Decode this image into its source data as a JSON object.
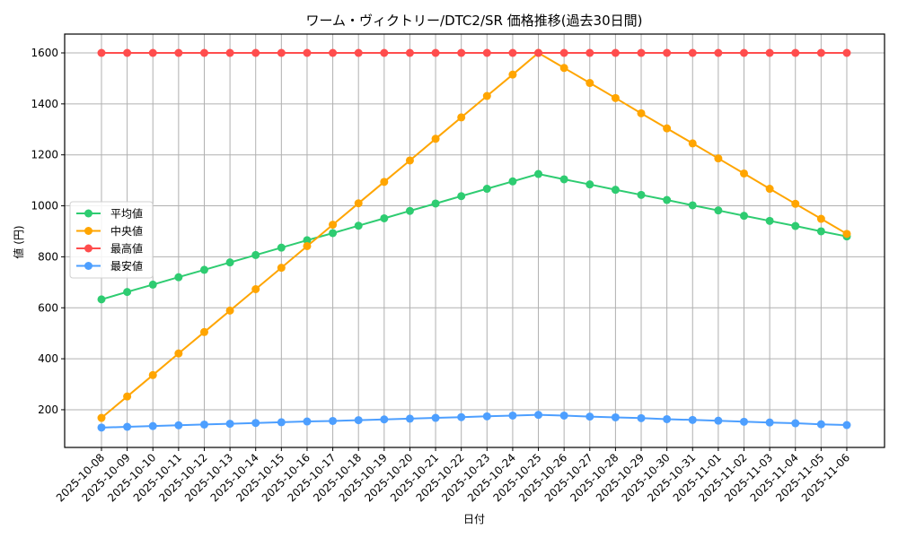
{
  "chart_data": {
    "type": "line",
    "title": "ワーム・ヴィクトリー/DTC2/SR 価格推移(過去30日間)",
    "xlabel": "日付",
    "ylabel": "値 (円)",
    "ylim": [
      55,
      1665
    ],
    "yticks": [
      200,
      400,
      600,
      800,
      1000,
      1200,
      1400,
      1600
    ],
    "grid": true,
    "legend_position": "center left",
    "x": [
      "2025-10-08",
      "2025-10-09",
      "2025-10-10",
      "2025-10-11",
      "2025-10-12",
      "2025-10-13",
      "2025-10-14",
      "2025-10-15",
      "2025-10-16",
      "2025-10-17",
      "2025-10-18",
      "2025-10-19",
      "2025-10-20",
      "2025-10-21",
      "2025-10-22",
      "2025-10-23",
      "2025-10-24",
      "2025-10-25",
      "2025-10-26",
      "2025-10-27",
      "2025-10-28",
      "2025-10-29",
      "2025-10-30",
      "2025-10-31",
      "2025-11-01",
      "2025-11-02",
      "2025-11-03",
      "2025-11-04",
      "2025-11-05",
      "2025-11-06"
    ],
    "series": [
      {
        "name": "平均値",
        "color": "#2ecc71",
        "values": [
          633,
          662,
          691,
          720,
          749,
          778,
          807,
          836,
          865,
          893,
          922,
          951,
          980,
          1009,
          1038,
          1067,
          1096,
          1125,
          1104,
          1084,
          1063,
          1043,
          1023,
          1002,
          982,
          961,
          941,
          921,
          900,
          880
        ]
      },
      {
        "name": "中央値",
        "color": "#ffa500",
        "values": [
          168,
          252,
          336,
          421,
          505,
          589,
          673,
          757,
          842,
          926,
          1010,
          1094,
          1178,
          1263,
          1347,
          1431,
          1515,
          1600,
          1541,
          1482,
          1423,
          1363,
          1304,
          1245,
          1186,
          1127,
          1067,
          1008,
          949,
          890
        ]
      },
      {
        "name": "最高値",
        "color": "#ff4d4d",
        "values": [
          1600,
          1600,
          1600,
          1600,
          1600,
          1600,
          1600,
          1600,
          1600,
          1600,
          1600,
          1600,
          1600,
          1600,
          1600,
          1600,
          1600,
          1600,
          1600,
          1600,
          1600,
          1600,
          1600,
          1600,
          1600,
          1600,
          1600,
          1600,
          1600,
          1600
        ]
      },
      {
        "name": "最安値",
        "color": "#4d9fff",
        "values": [
          130,
          133,
          136,
          139,
          142,
          145,
          148,
          151,
          154,
          156,
          159,
          162,
          165,
          168,
          171,
          174,
          177,
          180,
          177,
          173,
          170,
          167,
          163,
          160,
          157,
          153,
          150,
          147,
          143,
          140
        ]
      }
    ]
  }
}
